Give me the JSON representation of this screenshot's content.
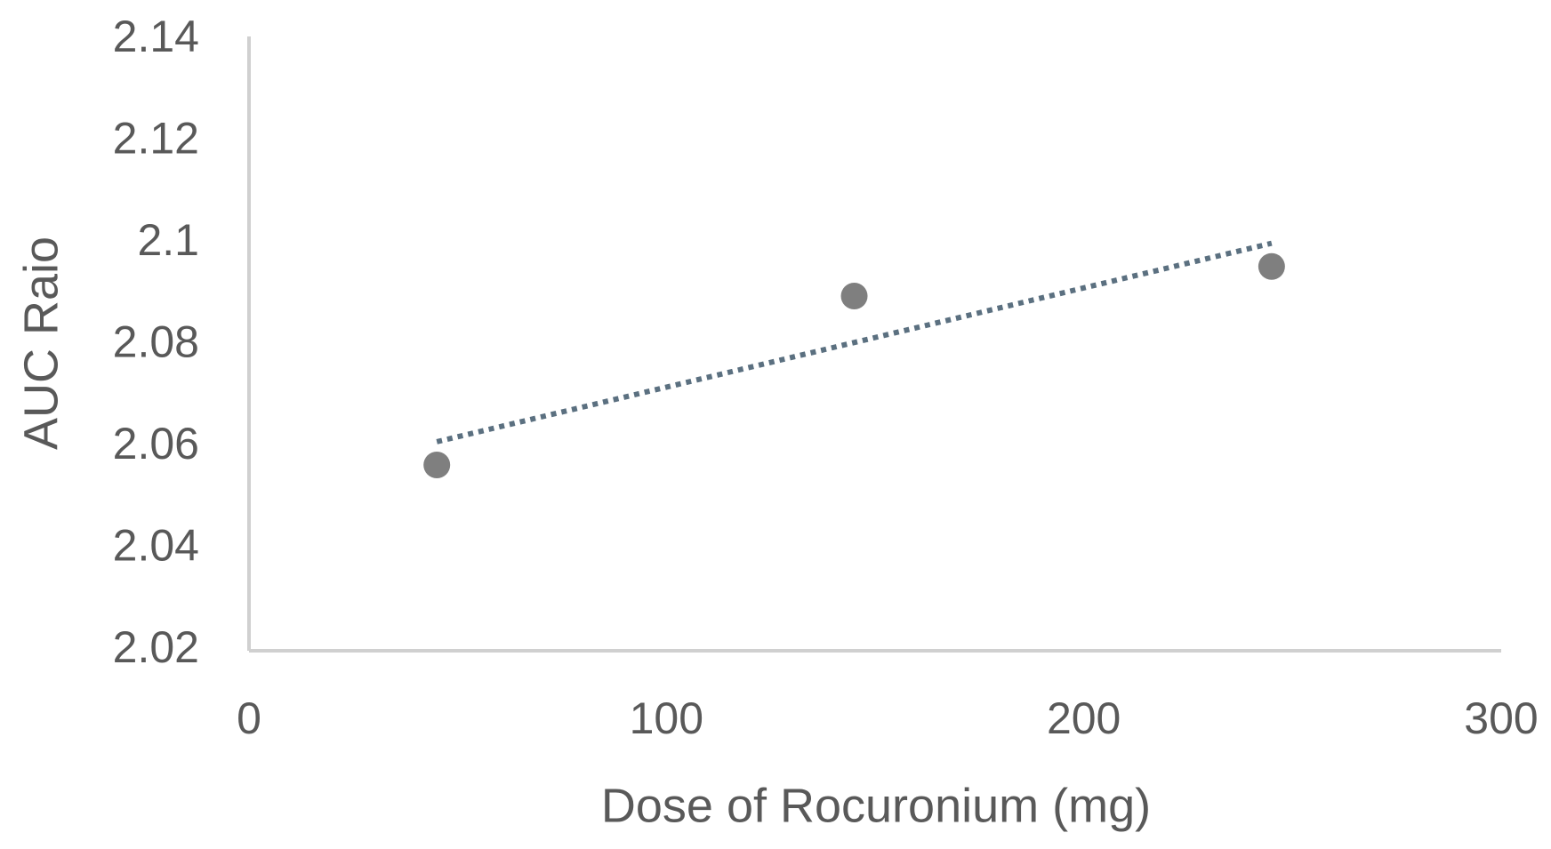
{
  "chart_data": {
    "type": "scatter",
    "x_label": "Dose of Rocuronium (mg)",
    "y_label": "AUC Raio",
    "series": [
      {
        "x": [
          45,
          145,
          245
        ],
        "values": [
          2.0565,
          2.0897,
          2.0955
        ],
        "color": "#7f7f7f"
      }
    ],
    "trendline": "linear",
    "trendline_color": "#5b7080",
    "xlim": [
      0,
      300
    ],
    "xticks": [
      0,
      100,
      200,
      300
    ],
    "ylim": [
      2.02,
      2.14
    ],
    "yticks": [
      2.02,
      2.04,
      2.06,
      2.08,
      2.1,
      2.12,
      2.14
    ]
  }
}
